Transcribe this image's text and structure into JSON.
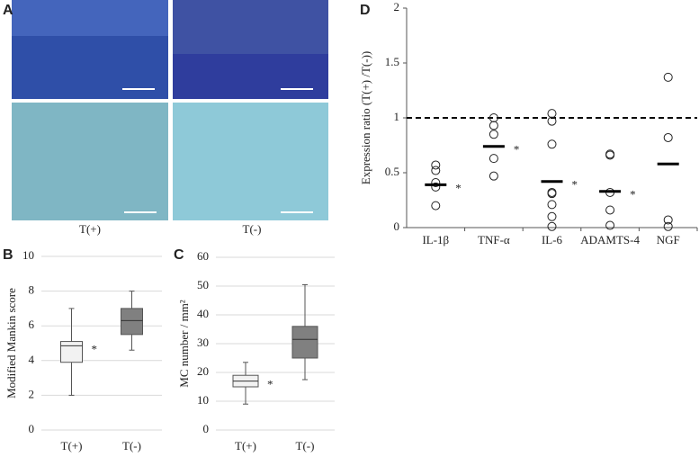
{
  "panel_labels": [
    "A",
    "B",
    "C",
    "D"
  ],
  "image_labels": [
    "T(+)",
    "T(-)"
  ],
  "chart_data": [
    {
      "type": "box",
      "ylabel": "Modified Mankin score",
      "categories": [
        "T(+)",
        "T(-)"
      ],
      "boxes": [
        {
          "min": 2,
          "q1": 3.9,
          "median": 4.85,
          "q3": 5.1,
          "max": 7,
          "color": "#f2f2f2"
        },
        {
          "min": 4.6,
          "q1": 5.5,
          "median": 6.3,
          "q3": 7,
          "max": 8,
          "color": "#808080"
        }
      ],
      "significance_labels": [
        "*",
        null
      ],
      "ylim": [
        0,
        10
      ],
      "yticks": [
        0,
        2,
        4,
        6,
        8,
        10
      ],
      "grid": true
    },
    {
      "type": "box",
      "ylabel": "MC number / mm²",
      "categories": [
        "T(+)",
        "T(-)"
      ],
      "boxes": [
        {
          "min": 9,
          "q1": 15,
          "median": 17,
          "q3": 19,
          "max": 23.5,
          "color": "#f2f2f2"
        },
        {
          "min": 17.5,
          "q1": 25,
          "median": 31.5,
          "q3": 36,
          "max": 50.5,
          "color": "#808080"
        }
      ],
      "significance_labels": [
        "*",
        null
      ],
      "ylim": [
        0,
        60
      ],
      "yticks": [
        0,
        10,
        20,
        30,
        40,
        50,
        60
      ],
      "grid": true
    },
    {
      "type": "dot",
      "ylabel": "Expression ratio (T(+) /T(-))",
      "categories": [
        "IL-1β",
        "TNF-α",
        "IL-6",
        "ADAMTS-4",
        "NGF"
      ],
      "points": [
        [
          0.57,
          0.52,
          0.41,
          0.37,
          0.2
        ],
        [
          1.0,
          0.93,
          0.85,
          0.63,
          0.47
        ],
        [
          1.04,
          0.97,
          0.76,
          0.32,
          0.31,
          0.21,
          0.1,
          0.01
        ],
        [
          0.67,
          0.66,
          0.32,
          0.16,
          0.02
        ],
        [
          1.37,
          0.82,
          0.07,
          0.01
        ]
      ],
      "means": [
        0.39,
        0.74,
        0.42,
        0.33,
        0.58
      ],
      "significance_labels": [
        "*",
        "*",
        "*",
        "*",
        null
      ],
      "reference_line": 1,
      "ylim": [
        0,
        2
      ],
      "yticks": [
        0,
        0.5,
        1,
        1.5,
        2
      ],
      "grid": false
    }
  ]
}
